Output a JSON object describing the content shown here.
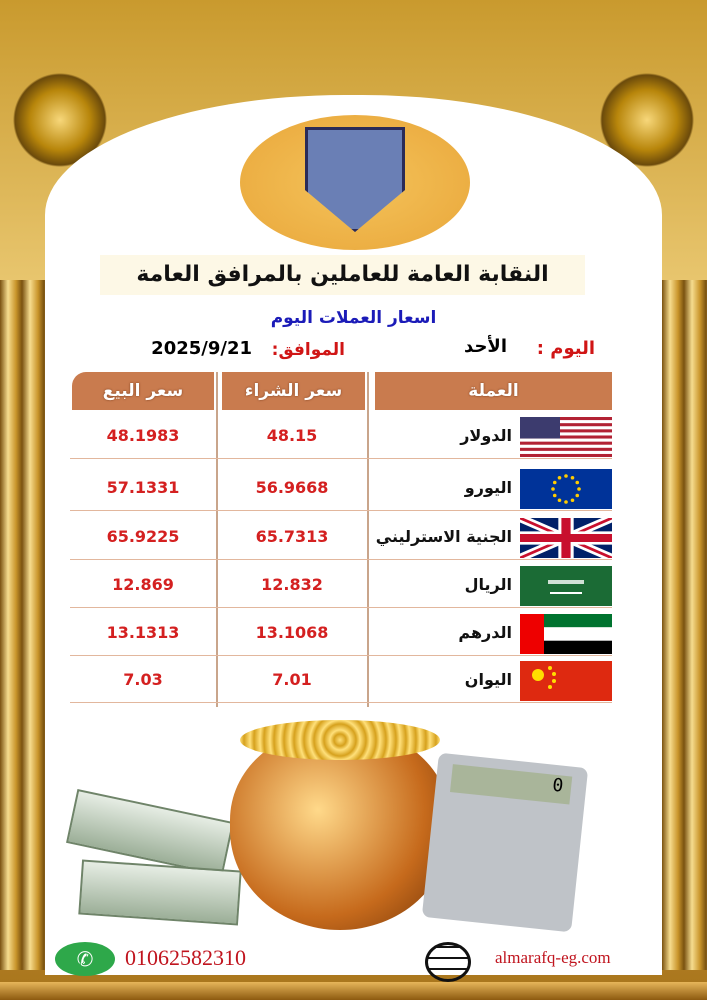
{
  "organization": {
    "logo_text": "النقابة العامة للعاملين بالمرافق العامة",
    "title": "النقابة العامة للعاملين بالمرافق العامة"
  },
  "subtitle": "اسعار العملات اليوم",
  "day": {
    "label": "اليوم :",
    "value": "الأحد"
  },
  "date": {
    "label": "الموافق:",
    "value": "2025/9/21"
  },
  "table": {
    "headers": {
      "currency": "العملة",
      "buy": "سعر الشراء",
      "sell": "سعر البيع"
    },
    "rows": [
      {
        "flag": "us-flag",
        "currency": "الدولار",
        "buy": "48.15",
        "sell": "48.1983"
      },
      {
        "flag": "eu-flag",
        "currency": "اليورو",
        "buy": "56.9668",
        "sell": "57.1331"
      },
      {
        "flag": "uk-flag",
        "currency": "الجنية الاسترليني",
        "buy": "65.7313",
        "sell": "65.9225"
      },
      {
        "flag": "saudi-flag",
        "currency": "الريال",
        "buy": "12.832",
        "sell": "12.869"
      },
      {
        "flag": "uae-flag",
        "currency": "الدرهم",
        "buy": "13.1068",
        "sell": "13.1313"
      },
      {
        "flag": "china-flag",
        "currency": "اليوان",
        "buy": "7.01",
        "sell": "7.03"
      }
    ]
  },
  "calculator_display": "0",
  "footer": {
    "phone": "01062582310",
    "website": "almarafq-eg.com"
  },
  "colors": {
    "header": "#c97b4e",
    "price": "#d42020",
    "subtitle": "#1b1bb8",
    "gold": "#c99a2e"
  }
}
